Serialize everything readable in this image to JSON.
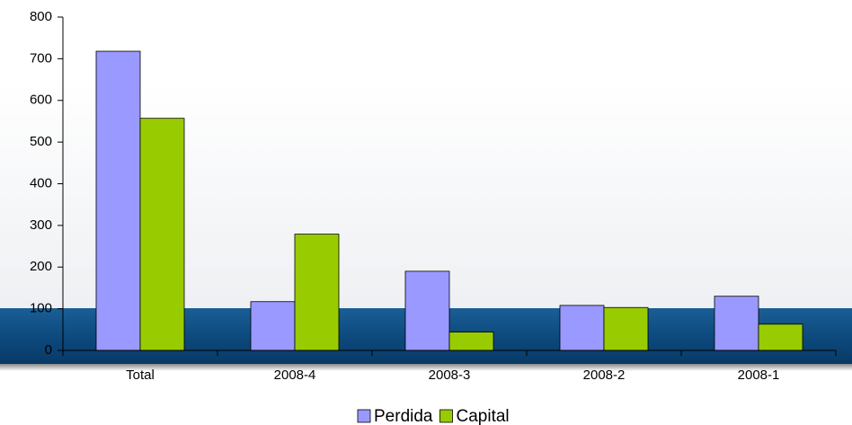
{
  "chart_data": {
    "type": "bar",
    "categories": [
      "Total",
      "2008-4",
      "2008-3",
      "2008-2",
      "2008-1"
    ],
    "series": [
      {
        "name": "Perdida",
        "color": "#9999ff",
        "values": [
          718,
          117,
          190,
          108,
          130
        ]
      },
      {
        "name": "Capital",
        "color": "#99cc00",
        "values": [
          557,
          279,
          44,
          103,
          63
        ]
      }
    ],
    "ylim": [
      0,
      800
    ],
    "yticks": [
      0,
      100,
      200,
      300,
      400,
      500,
      600,
      700,
      800
    ],
    "legend": "bottom"
  }
}
